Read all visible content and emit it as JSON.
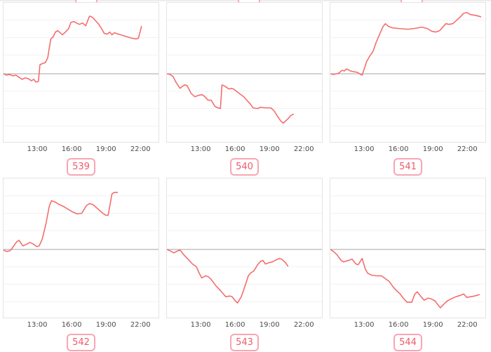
{
  "colors": {
    "line": "#f56c6c",
    "baseline": "#a6a6a6",
    "gridline": "#f2f2f2",
    "plot_border": "#e4e4e4",
    "tick_text": "#4b4b4b",
    "badge_text": "#ef5a6a",
    "badge_border": "#f7a6b2",
    "badge_background": "#ffffff",
    "page_background": "#ffffff"
  },
  "chart_data": {
    "type": "line",
    "title": "",
    "xlabel": "",
    "ylabel": "",
    "grid": "horizontal-only",
    "x_ticks": [
      "13:00",
      "16:00",
      "19:00",
      "22:00"
    ],
    "x_tick_positions_pct": [
      22,
      44,
      66,
      88
    ],
    "gridline_positions_pct": [
      12.5,
      25,
      37.5,
      63.5,
      76,
      88.5
    ],
    "baseline_pct": 51,
    "note": "points_pct are [x% across plot, y% from plot top]; baseline (start value) sits at 51%",
    "charts": [
      {
        "label": "539",
        "trend": "up",
        "points_pct": [
          [
            0,
            51
          ],
          [
            2,
            52
          ],
          [
            4,
            51.5
          ],
          [
            6,
            52.5
          ],
          [
            8,
            52
          ],
          [
            10,
            53.5
          ],
          [
            12,
            55
          ],
          [
            14,
            54
          ],
          [
            16,
            54.5
          ],
          [
            18,
            56
          ],
          [
            19.5,
            55
          ],
          [
            21,
            57
          ],
          [
            22.5,
            56.5
          ],
          [
            23.5,
            44.5
          ],
          [
            25.5,
            43.5
          ],
          [
            27,
            43
          ],
          [
            28.5,
            39.5
          ],
          [
            30.5,
            26
          ],
          [
            32,
            24.5
          ],
          [
            33.5,
            21
          ],
          [
            35,
            20
          ],
          [
            36.5,
            21.5
          ],
          [
            38,
            23
          ],
          [
            40,
            21
          ],
          [
            42,
            18.5
          ],
          [
            43.5,
            14
          ],
          [
            45.5,
            13.5
          ],
          [
            47,
            14.5
          ],
          [
            49,
            15.5
          ],
          [
            51,
            14.5
          ],
          [
            53,
            16.5
          ],
          [
            55.5,
            9.5
          ],
          [
            57.5,
            10.5
          ],
          [
            59.5,
            13
          ],
          [
            61.5,
            15.5
          ],
          [
            63.5,
            19
          ],
          [
            65,
            22
          ],
          [
            67,
            22.5
          ],
          [
            68.5,
            21
          ],
          [
            70,
            23
          ],
          [
            71.5,
            21.5
          ],
          [
            74,
            22.5
          ],
          [
            77,
            23.5
          ],
          [
            80,
            24.5
          ],
          [
            83,
            25.5
          ],
          [
            85.5,
            26
          ],
          [
            87,
            25.5
          ],
          [
            89,
            17
          ]
        ]
      },
      {
        "label": "540",
        "trend": "down",
        "points_pct": [
          [
            0,
            51
          ],
          [
            2,
            51.5
          ],
          [
            4,
            53
          ],
          [
            6,
            57.5
          ],
          [
            8.5,
            61.5
          ],
          [
            10,
            60
          ],
          [
            11.5,
            59
          ],
          [
            13,
            59.5
          ],
          [
            15.5,
            65
          ],
          [
            18,
            67.5
          ],
          [
            20.5,
            66.5
          ],
          [
            22.5,
            66
          ],
          [
            24,
            67
          ],
          [
            26.5,
            70
          ],
          [
            28.5,
            70
          ],
          [
            31,
            74.5
          ],
          [
            33,
            75.5
          ],
          [
            34.5,
            76
          ],
          [
            35.5,
            59
          ],
          [
            37.5,
            60
          ],
          [
            40,
            62
          ],
          [
            41.5,
            61.5
          ],
          [
            43,
            62
          ],
          [
            46.5,
            65
          ],
          [
            49.5,
            67.5
          ],
          [
            51.5,
            70
          ],
          [
            54,
            73
          ],
          [
            55.5,
            75.5
          ],
          [
            58.5,
            76
          ],
          [
            60.5,
            75
          ],
          [
            63,
            75.5
          ],
          [
            67,
            75.5
          ],
          [
            69,
            77.5
          ],
          [
            71,
            81
          ],
          [
            73.5,
            85
          ],
          [
            75,
            86.5
          ],
          [
            78,
            83.5
          ],
          [
            80,
            81
          ],
          [
            81.5,
            80
          ]
        ]
      },
      {
        "label": "541",
        "trend": "up",
        "points_pct": [
          [
            0,
            51
          ],
          [
            2,
            51.5
          ],
          [
            4,
            51
          ],
          [
            5.5,
            50.5
          ],
          [
            7.5,
            48.5
          ],
          [
            9,
            49
          ],
          [
            10.5,
            47.5
          ],
          [
            13,
            49
          ],
          [
            15,
            49.5
          ],
          [
            17.5,
            50
          ],
          [
            19.5,
            51.5
          ],
          [
            20.5,
            52
          ],
          [
            23.5,
            42
          ],
          [
            25,
            39
          ],
          [
            27.5,
            35
          ],
          [
            29.5,
            28.5
          ],
          [
            32,
            22
          ],
          [
            34,
            17
          ],
          [
            35.5,
            15
          ],
          [
            37.5,
            17
          ],
          [
            40,
            18
          ],
          [
            44.5,
            18.5
          ],
          [
            50,
            19
          ],
          [
            54,
            18.5
          ],
          [
            56.5,
            18
          ],
          [
            59,
            17.5
          ],
          [
            62.5,
            18.5
          ],
          [
            65.5,
            20.5
          ],
          [
            68,
            21
          ],
          [
            70.5,
            20
          ],
          [
            74.5,
            15
          ],
          [
            76.5,
            15.5
          ],
          [
            79,
            15
          ],
          [
            83.5,
            10.5
          ],
          [
            86,
            7.5
          ],
          [
            88,
            7
          ],
          [
            90.5,
            8.5
          ],
          [
            93.5,
            9
          ],
          [
            97,
            10
          ]
        ]
      },
      {
        "label": "542",
        "trend": "up",
        "points_pct": [
          [
            0,
            51.5
          ],
          [
            2,
            52.5
          ],
          [
            4,
            52
          ],
          [
            5,
            51
          ],
          [
            8.5,
            45.5
          ],
          [
            10,
            44.5
          ],
          [
            12.5,
            48.5
          ],
          [
            14.5,
            47.5
          ],
          [
            17,
            46
          ],
          [
            19,
            47
          ],
          [
            21.5,
            49
          ],
          [
            23,
            48.5
          ],
          [
            25,
            43.5
          ],
          [
            27.5,
            32
          ],
          [
            29.5,
            20
          ],
          [
            31,
            16
          ],
          [
            33.5,
            17
          ],
          [
            35.5,
            18.5
          ],
          [
            38.5,
            20
          ],
          [
            41.5,
            22
          ],
          [
            44.5,
            24
          ],
          [
            47.5,
            25.5
          ],
          [
            50.5,
            25
          ],
          [
            53.5,
            19.5
          ],
          [
            55.5,
            18
          ],
          [
            58,
            19
          ],
          [
            61,
            22
          ],
          [
            64,
            25
          ],
          [
            66,
            26.5
          ],
          [
            67.5,
            26.5
          ],
          [
            70,
            11
          ],
          [
            71.5,
            10
          ],
          [
            73.5,
            10
          ]
        ]
      },
      {
        "label": "543",
        "trend": "down",
        "points_pct": [
          [
            0,
            51
          ],
          [
            2,
            52
          ],
          [
            4.5,
            53.5
          ],
          [
            7,
            52
          ],
          [
            8.5,
            51.5
          ],
          [
            11,
            55
          ],
          [
            14,
            58.5
          ],
          [
            16.5,
            61.5
          ],
          [
            19,
            63.5
          ],
          [
            21,
            68.5
          ],
          [
            22.5,
            71.5
          ],
          [
            25,
            70
          ],
          [
            26.5,
            70.5
          ],
          [
            28.5,
            72.5
          ],
          [
            31.5,
            77
          ],
          [
            34,
            80
          ],
          [
            36,
            82.5
          ],
          [
            38,
            85
          ],
          [
            40.5,
            84.5
          ],
          [
            42,
            85
          ],
          [
            44.5,
            88.5
          ],
          [
            45.5,
            89.5
          ],
          [
            48,
            85
          ],
          [
            50,
            78.5
          ],
          [
            52.5,
            70
          ],
          [
            54,
            68
          ],
          [
            56,
            66.5
          ],
          [
            58.5,
            62
          ],
          [
            60.5,
            59.5
          ],
          [
            62,
            59
          ],
          [
            63.5,
            61.5
          ],
          [
            66,
            60.5
          ],
          [
            68,
            60
          ],
          [
            70.5,
            58.5
          ],
          [
            72.5,
            57.5
          ],
          [
            74,
            58
          ],
          [
            76.5,
            60.5
          ],
          [
            78,
            63
          ]
        ]
      },
      {
        "label": "544",
        "trend": "down",
        "points_pct": [
          [
            0,
            51
          ],
          [
            2,
            52.5
          ],
          [
            4,
            54.5
          ],
          [
            7,
            59
          ],
          [
            8.5,
            60
          ],
          [
            11.5,
            59
          ],
          [
            14,
            58
          ],
          [
            16.5,
            61.5
          ],
          [
            18,
            62
          ],
          [
            20.5,
            57.5
          ],
          [
            22.5,
            65
          ],
          [
            24,
            68
          ],
          [
            26.5,
            69.5
          ],
          [
            30,
            70
          ],
          [
            33,
            70
          ],
          [
            36,
            72.5
          ],
          [
            38,
            74
          ],
          [
            40.5,
            78
          ],
          [
            42.5,
            80.5
          ],
          [
            45,
            83
          ],
          [
            47,
            86
          ],
          [
            49.5,
            89
          ],
          [
            52.5,
            89
          ],
          [
            54.5,
            83
          ],
          [
            56,
            81.5
          ],
          [
            58.5,
            85
          ],
          [
            60.5,
            87.5
          ],
          [
            63,
            86
          ],
          [
            65,
            86.5
          ],
          [
            67.5,
            88
          ],
          [
            69.5,
            91
          ],
          [
            71,
            93
          ],
          [
            73.5,
            90
          ],
          [
            75.5,
            88
          ],
          [
            78,
            86.5
          ],
          [
            81,
            85
          ],
          [
            84,
            84
          ],
          [
            86,
            83
          ],
          [
            88,
            85.5
          ],
          [
            90.5,
            85
          ],
          [
            93,
            84.5
          ],
          [
            96,
            83.5
          ]
        ]
      }
    ]
  }
}
